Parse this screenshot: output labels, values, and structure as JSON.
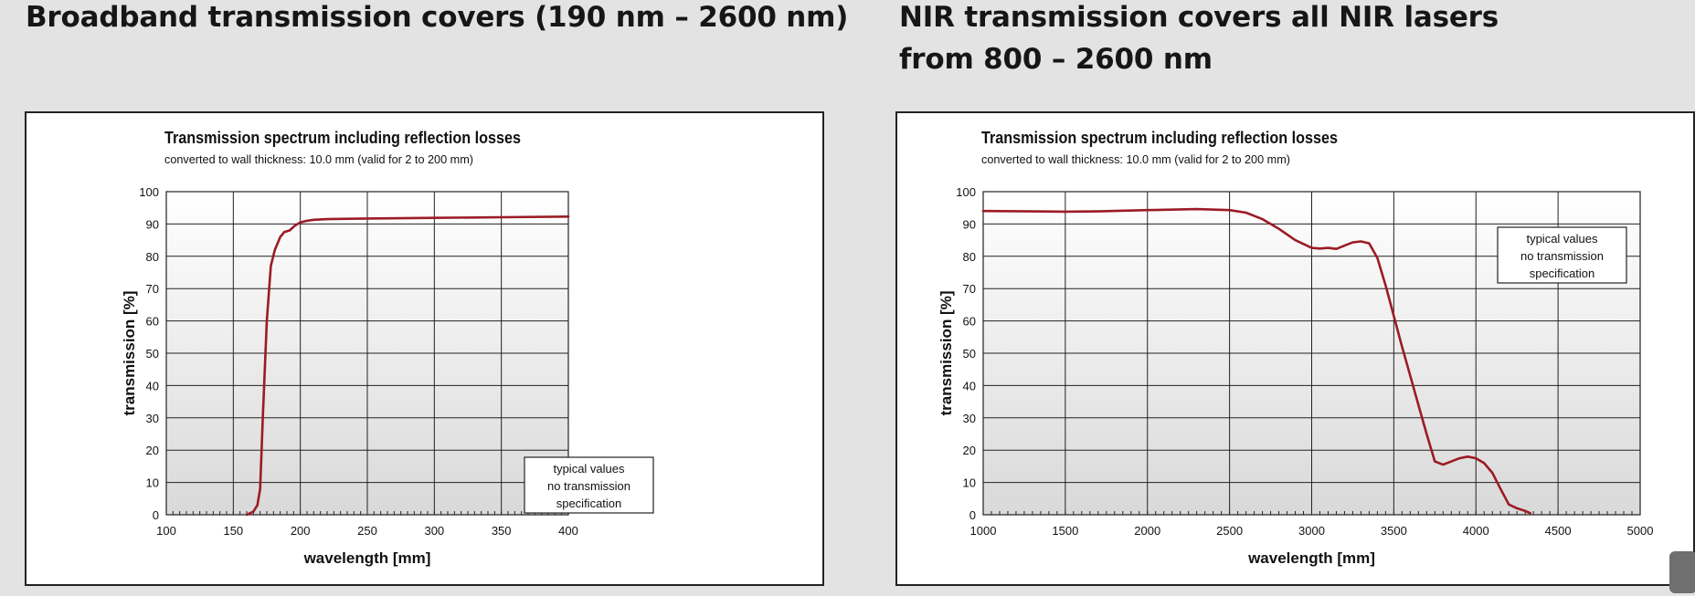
{
  "headings": {
    "left": [
      "Broadband transmission covers (190 nm – 2600 nm)"
    ],
    "right": [
      "NIR transmission covers all NIR lasers",
      "from 800 – 2600 nm"
    ]
  },
  "colors": {
    "curve": "#9b1b24",
    "grid": "#222222",
    "page_bg": "#e3e3e3"
  },
  "chart_data": [
    {
      "type": "line",
      "title": "Transmission spectrum including reflection losses",
      "subtitle": "converted to wall thickness: 10.0 mm (valid for 2 to 200 mm)",
      "xlabel": "wavelength [mm]",
      "ylabel": "transmission [%]",
      "xlim": [
        100,
        400
      ],
      "ylim": [
        0,
        100
      ],
      "xticks": [
        100,
        150,
        200,
        250,
        300,
        350,
        400
      ],
      "yticks": [
        0,
        10,
        20,
        30,
        40,
        50,
        60,
        70,
        80,
        90,
        100
      ],
      "grid": true,
      "annotation": [
        "typical values",
        "no transmission",
        "specification"
      ],
      "annotation_placement": "bottom-right",
      "series": [
        {
          "x": [
            160,
            165,
            168,
            170,
            172,
            175,
            178,
            181,
            185,
            188,
            192,
            196,
            200,
            205,
            210,
            220,
            250,
            300,
            350,
            400
          ],
          "y": [
            0,
            1,
            3,
            8,
            30,
            60,
            77,
            82,
            86,
            87.5,
            88,
            89.5,
            90.5,
            91,
            91.3,
            91.5,
            91.7,
            91.9,
            92.1,
            92.3
          ]
        }
      ]
    },
    {
      "type": "line",
      "title": "Transmission spectrum including reflection losses",
      "subtitle": "converted to wall thickness: 10.0 mm (valid for 2 to 200 mm)",
      "xlabel": "wavelength [mm]",
      "ylabel": "transmission [%]",
      "xlim": [
        1000,
        5000
      ],
      "ylim": [
        0,
        100
      ],
      "xticks": [
        1000,
        1500,
        2000,
        2500,
        3000,
        3500,
        4000,
        4500,
        5000
      ],
      "yticks": [
        0,
        10,
        20,
        30,
        40,
        50,
        60,
        70,
        80,
        90,
        100
      ],
      "grid": true,
      "annotation": [
        "typical values",
        "no transmission",
        "specification"
      ],
      "annotation_placement": "top-right",
      "series": [
        {
          "x": [
            1000,
            1500,
            1700,
            2000,
            2300,
            2500,
            2600,
            2700,
            2800,
            2900,
            3000,
            3050,
            3100,
            3150,
            3200,
            3250,
            3300,
            3350,
            3400,
            3450,
            3500,
            3550,
            3600,
            3650,
            3700,
            3750,
            3800,
            3850,
            3900,
            3950,
            4000,
            4050,
            4100,
            4150,
            4200,
            4250,
            4300,
            4330
          ],
          "y": [
            94,
            93.8,
            93.9,
            94.3,
            94.6,
            94.3,
            93.5,
            91.5,
            88.5,
            85,
            82.6,
            82.4,
            82.6,
            82.3,
            83.3,
            84.3,
            84.6,
            84,
            79.5,
            71,
            61.5,
            52,
            43,
            34,
            25,
            16.5,
            15.5,
            16.5,
            17.5,
            18,
            17.5,
            16,
            13,
            8,
            3.2,
            2,
            1.2,
            0.5
          ]
        }
      ]
    }
  ]
}
